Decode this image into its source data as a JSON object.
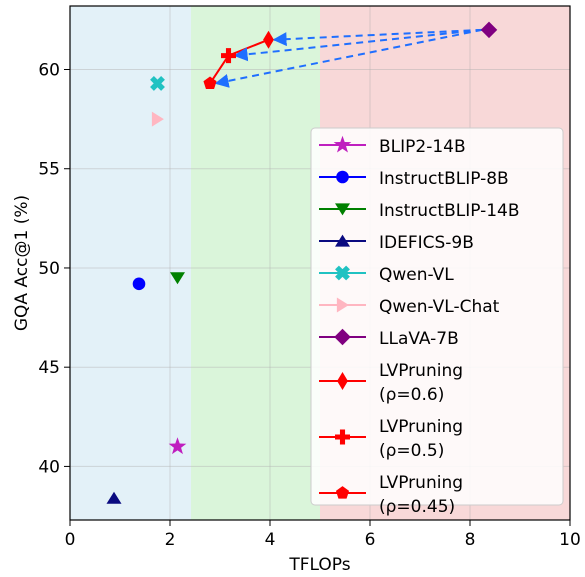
{
  "chart_data": {
    "type": "scatter",
    "xlabel": "TFLOPs",
    "ylabel": "GQA Acc@1 (%)",
    "xlim": [
      0,
      10
    ],
    "ylim": [
      37.3,
      63.2
    ],
    "x_ticks": [
      "0",
      "2",
      "4",
      "6",
      "8",
      "10"
    ],
    "y_ticks": [
      "40",
      "45",
      "50",
      "55",
      "60"
    ],
    "grid": true,
    "legend_position": "right",
    "regions": [
      {
        "x_from": 0,
        "x_to": 2.42,
        "color": "#e3f1f8"
      },
      {
        "x_from": 2.42,
        "x_to": 5.0,
        "color": "#daf5da"
      },
      {
        "x_from": 5.0,
        "x_to": 10,
        "color": "#f8d8d8"
      }
    ],
    "series": [
      {
        "name": "BLIP2-14B",
        "marker": "star",
        "color": "#bf1fbf",
        "points": [
          {
            "x": 2.15,
            "y": 41.0
          }
        ]
      },
      {
        "name": "InstructBLIP-8B",
        "marker": "circle",
        "color": "#0000ff",
        "points": [
          {
            "x": 1.38,
            "y": 49.2
          }
        ]
      },
      {
        "name": "InstructBLIP-14B",
        "marker": "triangle-down",
        "color": "#008000",
        "points": [
          {
            "x": 2.15,
            "y": 49.5
          }
        ]
      },
      {
        "name": "IDEFICS-9B",
        "marker": "triangle-up",
        "color": "#0a0a80",
        "points": [
          {
            "x": 0.88,
            "y": 38.4
          }
        ]
      },
      {
        "name": "Qwen-VL",
        "marker": "x-filled",
        "color": "#20c2c2",
        "points": [
          {
            "x": 1.75,
            "y": 59.3
          }
        ]
      },
      {
        "name": "Qwen-VL-Chat",
        "marker": "triangle-right",
        "color": "#ffb6c1",
        "points": [
          {
            "x": 1.75,
            "y": 57.5
          }
        ]
      },
      {
        "name": "LLaVA-7B",
        "marker": "diamond",
        "color": "#800080",
        "points": [
          {
            "x": 8.38,
            "y": 62.0
          }
        ]
      },
      {
        "name": "LVPruning\n(ρ=0.6)",
        "marker": "thin-diamond",
        "color": "#ff0000",
        "points": [
          {
            "x": 3.97,
            "y": 61.5
          }
        ]
      },
      {
        "name": "LVPruning\n(ρ=0.5)",
        "marker": "plus-filled",
        "color": "#ff0000",
        "points": [
          {
            "x": 3.17,
            "y": 60.7
          }
        ]
      },
      {
        "name": "LVPruning\n(ρ=0.45)",
        "marker": "pentagon",
        "color": "#ff0000",
        "points": [
          {
            "x": 2.8,
            "y": 59.3
          }
        ]
      }
    ],
    "lines": [
      {
        "color": "#ff0000",
        "points": [
          {
            "x": 2.8,
            "y": 59.3
          },
          {
            "x": 3.17,
            "y": 60.7
          },
          {
            "x": 3.97,
            "y": 61.5
          }
        ]
      }
    ],
    "arrows": [
      {
        "color": "#1f6fff",
        "from": {
          "x": 8.25,
          "y": 62.0
        },
        "to": {
          "x": 4.08,
          "y": 61.5
        }
      },
      {
        "color": "#1f6fff",
        "from": {
          "x": 8.25,
          "y": 62.0
        },
        "to": {
          "x": 3.3,
          "y": 60.7
        }
      },
      {
        "color": "#1f6fff",
        "from": {
          "x": 8.25,
          "y": 62.0
        },
        "to": {
          "x": 2.92,
          "y": 59.3
        }
      }
    ]
  }
}
